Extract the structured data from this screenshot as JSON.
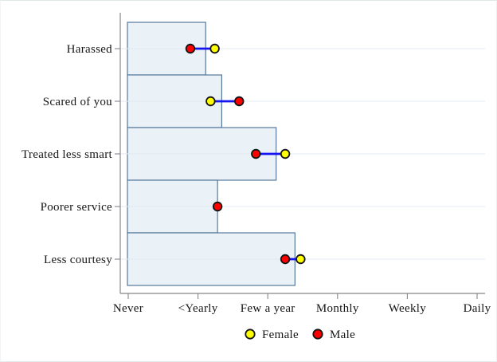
{
  "page": {
    "background": "#ffffff",
    "title": ""
  },
  "chart_data": {
    "type": "bar",
    "orientation": "horizontal",
    "title": "",
    "xlabel": "",
    "ylabel": "",
    "categories": [
      "Harassed",
      "Scared of you",
      "Treated less smart",
      "Poorer service",
      "Less courtesy"
    ],
    "bar_values": [
      1.11,
      1.34,
      2.12,
      1.28,
      2.39
    ],
    "series": [
      {
        "name": "Female",
        "marker_color": "#ffff00",
        "values": [
          1.24,
          1.18,
          2.25,
          null,
          2.47
        ]
      },
      {
        "name": "Male",
        "marker_color": "#fe0000",
        "values": [
          0.89,
          1.59,
          1.83,
          1.28,
          2.25
        ]
      }
    ],
    "x_ticks": [
      {
        "value": 0,
        "label": "Never"
      },
      {
        "value": 1,
        "label": "<Yearly"
      },
      {
        "value": 2,
        "label": "Few a year"
      },
      {
        "value": 3,
        "label": "Monthly"
      },
      {
        "value": 4,
        "label": "Weekly"
      },
      {
        "value": 5,
        "label": "Daily"
      }
    ],
    "xlim": [
      0,
      5.11
    ],
    "grid": "horizontal-light-per-category",
    "legend_position": "bottom-center"
  },
  "legend": {
    "items": [
      {
        "label": "Female",
        "color": "#ffff00"
      },
      {
        "label": "Male",
        "color": "#fe0000"
      }
    ]
  },
  "colors": {
    "bar_fill": "#eaf1f7",
    "bar_border": "#56789a",
    "gridline": "#e3eaf2",
    "axis": "#878787",
    "text": "#161616",
    "connector": "#1515f0",
    "marker_outline": "#141414",
    "female_marker": "#ffff00",
    "male_marker": "#fe0000"
  }
}
